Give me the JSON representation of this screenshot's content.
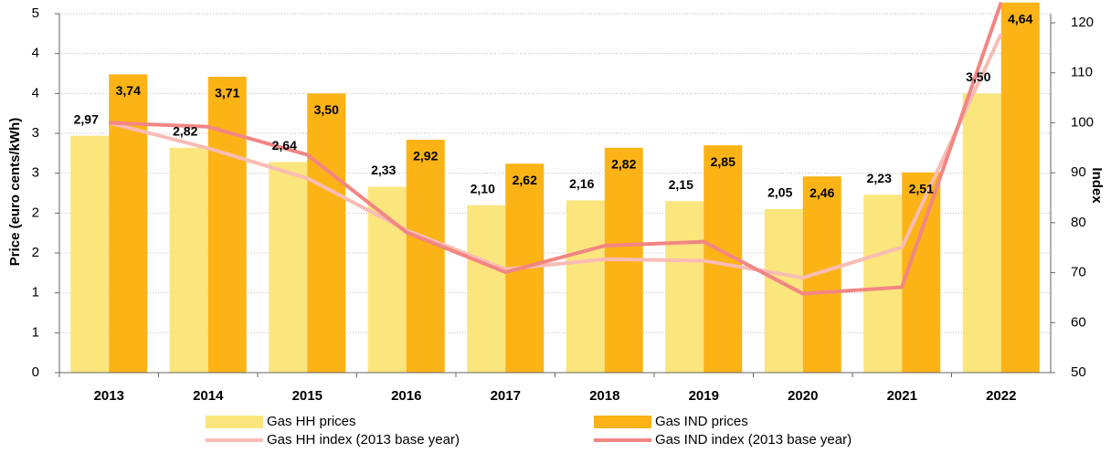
{
  "chart_data": {
    "type": "bar-line",
    "ylabel": "Price (euro cents/kWh)",
    "y2label": "Index",
    "categories": [
      "2013",
      "2014",
      "2015",
      "2016",
      "2017",
      "2018",
      "2019",
      "2020",
      "2021",
      "2022"
    ],
    "series": [
      {
        "name": "Gas HH prices",
        "type": "bar",
        "color": "#fbe57d",
        "values": [
          2.97,
          2.82,
          2.64,
          2.33,
          2.1,
          2.16,
          2.15,
          2.05,
          2.23,
          3.5
        ],
        "value_labels": [
          "2,97",
          "2,82",
          "2,64",
          "2,33",
          "2,10",
          "2,16",
          "2,15",
          "2,05",
          "2,23",
          "3,50"
        ]
      },
      {
        "name": "Gas IND prices",
        "type": "bar",
        "color": "#fbb316",
        "values": [
          3.74,
          3.71,
          3.5,
          2.92,
          2.62,
          2.82,
          2.85,
          2.46,
          2.51,
          4.64
        ],
        "value_labels": [
          "3,74",
          "3,71",
          "3,50",
          "2,92",
          "2,62",
          "2,82",
          "2,85",
          "2,46",
          "2,51",
          "4,64"
        ]
      },
      {
        "name": "Gas HH index (2013 base year)",
        "type": "line",
        "axis": "y2",
        "color": "#f9bcb5",
        "values": [
          100,
          94.9,
          88.9,
          78.5,
          70.7,
          72.7,
          72.4,
          69.0,
          75.1,
          117.8
        ]
      },
      {
        "name": "Gas IND index (2013 base year)",
        "type": "line",
        "axis": "y2",
        "color": "#f28683",
        "values": [
          100,
          99.2,
          93.6,
          78.1,
          70.1,
          75.4,
          76.2,
          65.8,
          67.1,
          124.1
        ]
      }
    ],
    "ylim": [
      0,
      4.5
    ],
    "yticks": [
      0,
      {
        "value": 0.5,
        "label": "1"
      },
      {
        "value": 1,
        "label": "1"
      },
      {
        "value": 1.5,
        "label": "2"
      },
      {
        "value": 2,
        "label": "2"
      },
      {
        "value": 2.5,
        "label": "3"
      },
      {
        "value": 3,
        "label": "3"
      },
      {
        "value": 3.5,
        "label": "4"
      },
      {
        "value": 4,
        "label": "4"
      },
      {
        "value": 4.5,
        "label": "5"
      }
    ],
    "y2lim": [
      50,
      120
    ],
    "y2ticks": [
      50,
      60,
      70,
      80,
      90,
      100,
      110,
      120
    ],
    "grid": true,
    "legend": "bottom"
  }
}
